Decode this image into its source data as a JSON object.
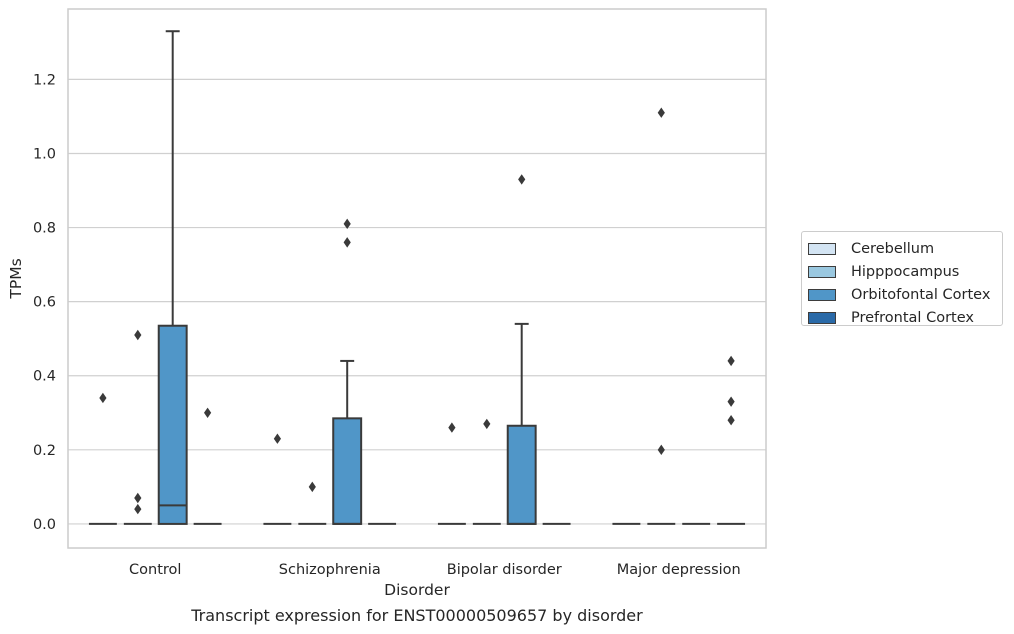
{
  "caption": "Transcript expression for ENST00000509657 by disorder",
  "chart_data": {
    "type": "box",
    "xlabel": "Disorder",
    "ylabel": "TPMs",
    "ylim": [
      -0.065,
      1.39
    ],
    "yticks": [
      0.0,
      0.2,
      0.4,
      0.6,
      0.8,
      1.0,
      1.2
    ],
    "ytick_labels": [
      "0.0",
      "0.2",
      "0.4",
      "0.6",
      "0.8",
      "1.0",
      "1.2"
    ],
    "grid": "horizontal",
    "legend_position": "right",
    "categories": [
      "Control",
      "Schizophrenia",
      "Bipolar disorder",
      "Major depression"
    ],
    "series": [
      {
        "name": "Cerebellum",
        "color": "#d3e4f3",
        "boxes": [
          {
            "q1": 0,
            "median": 0,
            "q3": 0,
            "whisker_low": 0,
            "whisker_high": 0,
            "outliers": [
              0.34
            ]
          },
          {
            "q1": 0,
            "median": 0,
            "q3": 0,
            "whisker_low": 0,
            "whisker_high": 0,
            "outliers": [
              0.23
            ]
          },
          {
            "q1": 0,
            "median": 0,
            "q3": 0,
            "whisker_low": 0,
            "whisker_high": 0,
            "outliers": [
              0.26
            ]
          },
          {
            "q1": 0,
            "median": 0,
            "q3": 0,
            "whisker_low": 0,
            "whisker_high": 0,
            "outliers": []
          }
        ]
      },
      {
        "name": "Hipppocampus",
        "color": "#9ac8e0",
        "boxes": [
          {
            "q1": 0,
            "median": 0,
            "q3": 0,
            "whisker_low": 0,
            "whisker_high": 0,
            "outliers": [
              0.51,
              0.07,
              0.04
            ]
          },
          {
            "q1": 0,
            "median": 0,
            "q3": 0,
            "whisker_low": 0,
            "whisker_high": 0,
            "outliers": [
              0.1
            ]
          },
          {
            "q1": 0,
            "median": 0,
            "q3": 0,
            "whisker_low": 0,
            "whisker_high": 0,
            "outliers": [
              0.27
            ]
          },
          {
            "q1": 0,
            "median": 0,
            "q3": 0,
            "whisker_low": 0,
            "whisker_high": 0,
            "outliers": [
              1.11,
              0.2
            ]
          }
        ]
      },
      {
        "name": "Orbitofontal Cortex",
        "color": "#5096c8",
        "boxes": [
          {
            "q1": 0,
            "median": 0.05,
            "q3": 0.535,
            "whisker_low": 0,
            "whisker_high": 1.33,
            "outliers": []
          },
          {
            "q1": 0,
            "median": 0,
            "q3": 0.285,
            "whisker_low": 0,
            "whisker_high": 0.44,
            "outliers": [
              0.81,
              0.76
            ]
          },
          {
            "q1": 0,
            "median": 0,
            "q3": 0.265,
            "whisker_low": 0,
            "whisker_high": 0.54,
            "outliers": [
              0.93
            ]
          },
          {
            "q1": 0,
            "median": 0,
            "q3": 0,
            "whisker_low": 0,
            "whisker_high": 0,
            "outliers": []
          }
        ]
      },
      {
        "name": "Prefrontal Cortex",
        "color": "#2a6aa8",
        "boxes": [
          {
            "q1": 0,
            "median": 0,
            "q3": 0,
            "whisker_low": 0,
            "whisker_high": 0,
            "outliers": [
              0.3
            ]
          },
          {
            "q1": 0,
            "median": 0,
            "q3": 0,
            "whisker_low": 0,
            "whisker_high": 0,
            "outliers": []
          },
          {
            "q1": 0,
            "median": 0,
            "q3": 0,
            "whisker_low": 0,
            "whisker_high": 0,
            "outliers": []
          },
          {
            "q1": 0,
            "median": 0,
            "q3": 0,
            "whisker_low": 0,
            "whisker_high": 0,
            "outliers": [
              0.44,
              0.33,
              0.28
            ]
          }
        ]
      }
    ]
  }
}
